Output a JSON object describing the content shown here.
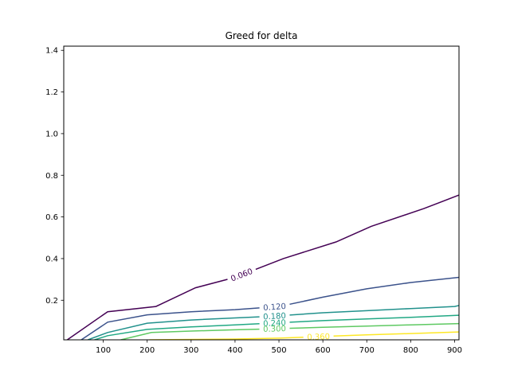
{
  "chart_data": {
    "type": "line",
    "title": "Greed for delta",
    "xlabel": "",
    "ylabel": "",
    "xlim": [
      10,
      910
    ],
    "ylim": [
      0.01,
      1.42
    ],
    "xticks": [
      100,
      200,
      300,
      400,
      500,
      600,
      700,
      800,
      900
    ],
    "xtick_labels": [
      "100",
      "200",
      "300",
      "400",
      "500",
      "600",
      "700",
      "800",
      "900"
    ],
    "yticks": [
      0.2,
      0.4,
      0.6,
      0.8,
      1.0,
      1.2,
      1.4
    ],
    "ytick_labels": [
      "0.2",
      "0.4",
      "0.6",
      "0.8",
      "1.0",
      "1.2",
      "1.4"
    ],
    "grid": false,
    "series": [
      {
        "level_label": "0.060",
        "color": "#440154",
        "label_x": 415,
        "x": [
          18,
          110,
          220,
          310,
          400,
          510,
          630,
          710,
          830,
          910
        ],
        "y": [
          0.01,
          0.145,
          0.17,
          0.26,
          0.31,
          0.4,
          0.48,
          0.555,
          0.64,
          0.705
        ]
      },
      {
        "level_label": "0.120",
        "color": "#3b528b",
        "label_x": 490,
        "x": [
          50,
          110,
          200,
          300,
          400,
          500,
          600,
          700,
          800,
          910
        ],
        "y": [
          0.01,
          0.095,
          0.13,
          0.145,
          0.155,
          0.17,
          0.215,
          0.255,
          0.285,
          0.31
        ]
      },
      {
        "level_label": "0.180",
        "color": "#21918c",
        "label_x": 490,
        "x": [
          65,
          110,
          200,
          300,
          400,
          500,
          600,
          700,
          800,
          900,
          910
        ],
        "y": [
          0.01,
          0.045,
          0.09,
          0.105,
          0.115,
          0.125,
          0.14,
          0.15,
          0.16,
          0.17,
          0.175
        ]
      },
      {
        "level_label": "0.240",
        "color": "#21a884",
        "label_x": 490,
        "x": [
          80,
          110,
          200,
          300,
          400,
          500,
          600,
          700,
          800,
          910
        ],
        "y": [
          0.01,
          0.03,
          0.06,
          0.072,
          0.082,
          0.092,
          0.102,
          0.11,
          0.118,
          0.128
        ]
      },
      {
        "level_label": "0.300",
        "color": "#5ec962",
        "label_x": 490,
        "x": [
          140,
          210,
          300,
          400,
          500,
          600,
          700,
          800,
          910
        ],
        "y": [
          0.01,
          0.045,
          0.052,
          0.058,
          0.064,
          0.07,
          0.076,
          0.082,
          0.088
        ]
      },
      {
        "level_label": "0.360",
        "color": "#fde725",
        "label_x": 590,
        "x": [
          205,
          300,
          400,
          500,
          600,
          700,
          800,
          910
        ],
        "y": [
          0.01,
          0.012,
          0.014,
          0.018,
          0.026,
          0.034,
          0.04,
          0.048
        ]
      }
    ]
  }
}
